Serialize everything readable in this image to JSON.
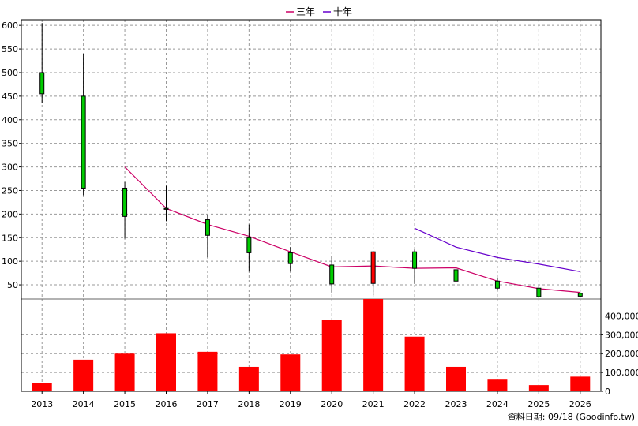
{
  "chart_data": {
    "type": "candlestick",
    "legend": [
      {
        "name": "三年",
        "color": "#cc0066"
      },
      {
        "name": "十年",
        "color": "#6600cc"
      }
    ],
    "categories": [
      "2013",
      "2014",
      "2015",
      "2016",
      "2017",
      "2018",
      "2019",
      "2020",
      "2021",
      "2022",
      "2023",
      "2024",
      "2025",
      "2026"
    ],
    "price_axis": {
      "ticks": [
        50,
        100,
        150,
        200,
        250,
        300,
        350,
        400,
        450,
        500,
        550,
        600
      ],
      "range": [
        20,
        612
      ]
    },
    "volume_axis": {
      "ticks": [
        "0",
        "100,000",
        "200,000",
        "300,000",
        "400,000"
      ],
      "range": [
        0,
        490000
      ]
    },
    "candles": [
      {
        "year": "2013",
        "open": 455,
        "close": 500,
        "high": 605,
        "low": 435,
        "color": "green"
      },
      {
        "year": "2014",
        "open": 450,
        "close": 255,
        "high": 540,
        "low": 240,
        "color": "green"
      },
      {
        "year": "2015",
        "open": 255,
        "close": 195,
        "high": 268,
        "low": 148,
        "color": "green"
      },
      {
        "year": "2016",
        "open": 212,
        "close": 210,
        "high": 260,
        "low": 185,
        "color": "green"
      },
      {
        "year": "2017",
        "open": 188,
        "close": 155,
        "high": 198,
        "low": 108,
        "color": "green"
      },
      {
        "year": "2018",
        "open": 150,
        "close": 118,
        "high": 178,
        "low": 78,
        "color": "green"
      },
      {
        "year": "2019",
        "open": 118,
        "close": 95,
        "high": 130,
        "low": 78,
        "color": "green"
      },
      {
        "year": "2020",
        "open": 92,
        "close": 52,
        "high": 112,
        "low": 33,
        "color": "green"
      },
      {
        "year": "2021",
        "open": 53,
        "close": 120,
        "high": 122,
        "low": 28,
        "color": "red"
      },
      {
        "year": "2022",
        "open": 120,
        "close": 85,
        "high": 125,
        "low": 52,
        "color": "green"
      },
      {
        "year": "2023",
        "open": 82,
        "close": 58,
        "high": 98,
        "low": 55,
        "color": "green"
      },
      {
        "year": "2024",
        "open": 58,
        "close": 43,
        "high": 64,
        "low": 38,
        "color": "green"
      },
      {
        "year": "2025",
        "open": 43,
        "close": 25,
        "high": 47,
        "low": 22,
        "color": "green"
      },
      {
        "year": "2026",
        "open": 32,
        "close": 26,
        "high": 34,
        "low": 23,
        "color": "green"
      }
    ],
    "series": [
      {
        "name": "三年",
        "color": "#cc0066",
        "points": [
          [
            "2015",
            300
          ],
          [
            "2016",
            212
          ],
          [
            "2017",
            178
          ],
          [
            "2018",
            153
          ],
          [
            "2019",
            120
          ],
          [
            "2020",
            88
          ],
          [
            "2021",
            90
          ],
          [
            "2022",
            85
          ],
          [
            "2023",
            86
          ],
          [
            "2024",
            58
          ],
          [
            "2025",
            42
          ],
          [
            "2026",
            34
          ]
        ]
      },
      {
        "name": "十年",
        "color": "#6600cc",
        "points": [
          [
            "2022",
            170
          ],
          [
            "2023",
            130
          ],
          [
            "2024",
            108
          ],
          [
            "2025",
            94
          ],
          [
            "2026",
            78
          ]
        ]
      }
    ],
    "volume": [
      {
        "year": "2013",
        "value": 45000
      },
      {
        "year": "2014",
        "value": 168000
      },
      {
        "year": "2015",
        "value": 200000
      },
      {
        "year": "2016",
        "value": 308000
      },
      {
        "year": "2017",
        "value": 210000
      },
      {
        "year": "2018",
        "value": 130000
      },
      {
        "year": "2019",
        "value": 196000
      },
      {
        "year": "2020",
        "value": 378000
      },
      {
        "year": "2021",
        "value": 490000
      },
      {
        "year": "2022",
        "value": 290000
      },
      {
        "year": "2023",
        "value": 130000
      },
      {
        "year": "2024",
        "value": 62000
      },
      {
        "year": "2025",
        "value": 33000
      },
      {
        "year": "2026",
        "value": 78000
      }
    ],
    "grid": true
  },
  "footer": {
    "text": "資料日期: 09/18 (Goodinfo.tw)"
  }
}
